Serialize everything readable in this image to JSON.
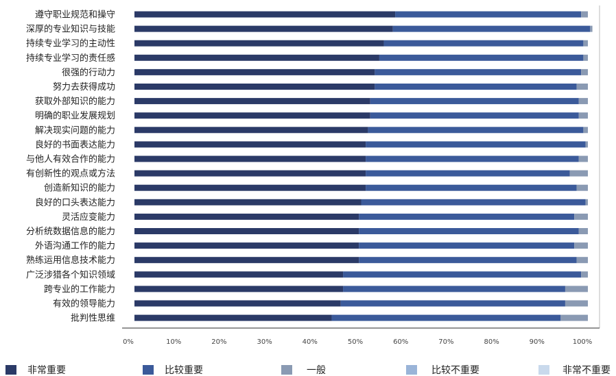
{
  "chart_data": {
    "type": "bar",
    "orientation": "horizontal",
    "stacked": true,
    "categories": [
      "遵守职业规范和操守",
      "深厚的专业知识与技能",
      "持续专业学习的主动性",
      "持续专业学习的责任感",
      "很强的行动力",
      "努力去获得成功",
      "获取外部知识的能力",
      "明确的职业发展规划",
      "解决现实问题的能力",
      "良好的书面表达能力",
      "与他人有效合作的能力",
      "有创新性的观点或方法",
      "创造新知识的能力",
      "良好的口头表达能力",
      "灵活应变能力",
      "分析统数据信息的能力",
      "外语沟通工作的能力",
      "熟练运用信息技术能力",
      "广泛涉猎各个知识领域",
      "跨专业的工作能力",
      "有效的领导能力",
      "批判性思维"
    ],
    "series": [
      {
        "name": "非常重要",
        "color": "#2b3a67",
        "values": [
          57.5,
          57,
          55,
          54,
          53,
          53,
          52,
          52,
          51.5,
          51,
          51,
          51,
          51,
          50,
          49.5,
          49.5,
          49.5,
          49.5,
          46,
          46,
          45.5,
          43.5
        ]
      },
      {
        "name": "比较重要",
        "color": "#3b5a9a",
        "values": [
          41,
          43.5,
          44,
          45,
          45.5,
          44.5,
          46,
          46,
          47.5,
          48.5,
          47,
          45,
          46.5,
          49.5,
          47.5,
          48.5,
          47.5,
          48,
          52.5,
          49,
          49.5,
          50.5
        ]
      },
      {
        "name": "一般",
        "color": "#8a9ab3",
        "values": [
          1.5,
          0.5,
          1,
          1,
          1.5,
          2.5,
          2,
          2,
          1,
          0.5,
          2,
          4,
          2.5,
          0.5,
          3,
          2,
          3,
          2.5,
          1.5,
          5,
          5,
          6
        ]
      },
      {
        "name": "比较不重要",
        "color": "#9ab4d8",
        "values": [
          0,
          0,
          0,
          0,
          0,
          0,
          0,
          0,
          0,
          0,
          0,
          0,
          0,
          0,
          0,
          0,
          0,
          0,
          0,
          0,
          0,
          0
        ]
      },
      {
        "name": "非常不重要",
        "color": "#c9d9ec",
        "values": [
          0,
          0,
          0,
          0,
          0,
          0,
          0,
          0,
          0,
          0,
          0,
          0,
          0,
          0,
          0,
          0,
          0,
          0,
          0,
          0,
          0,
          0
        ]
      }
    ],
    "xlim": [
      0,
      100
    ],
    "xticks": [
      "0%",
      "10%",
      "20%",
      "30%",
      "40%",
      "50%",
      "60%",
      "70%",
      "80%",
      "90%",
      "100%"
    ],
    "grid": false,
    "legend_position": "bottom"
  }
}
